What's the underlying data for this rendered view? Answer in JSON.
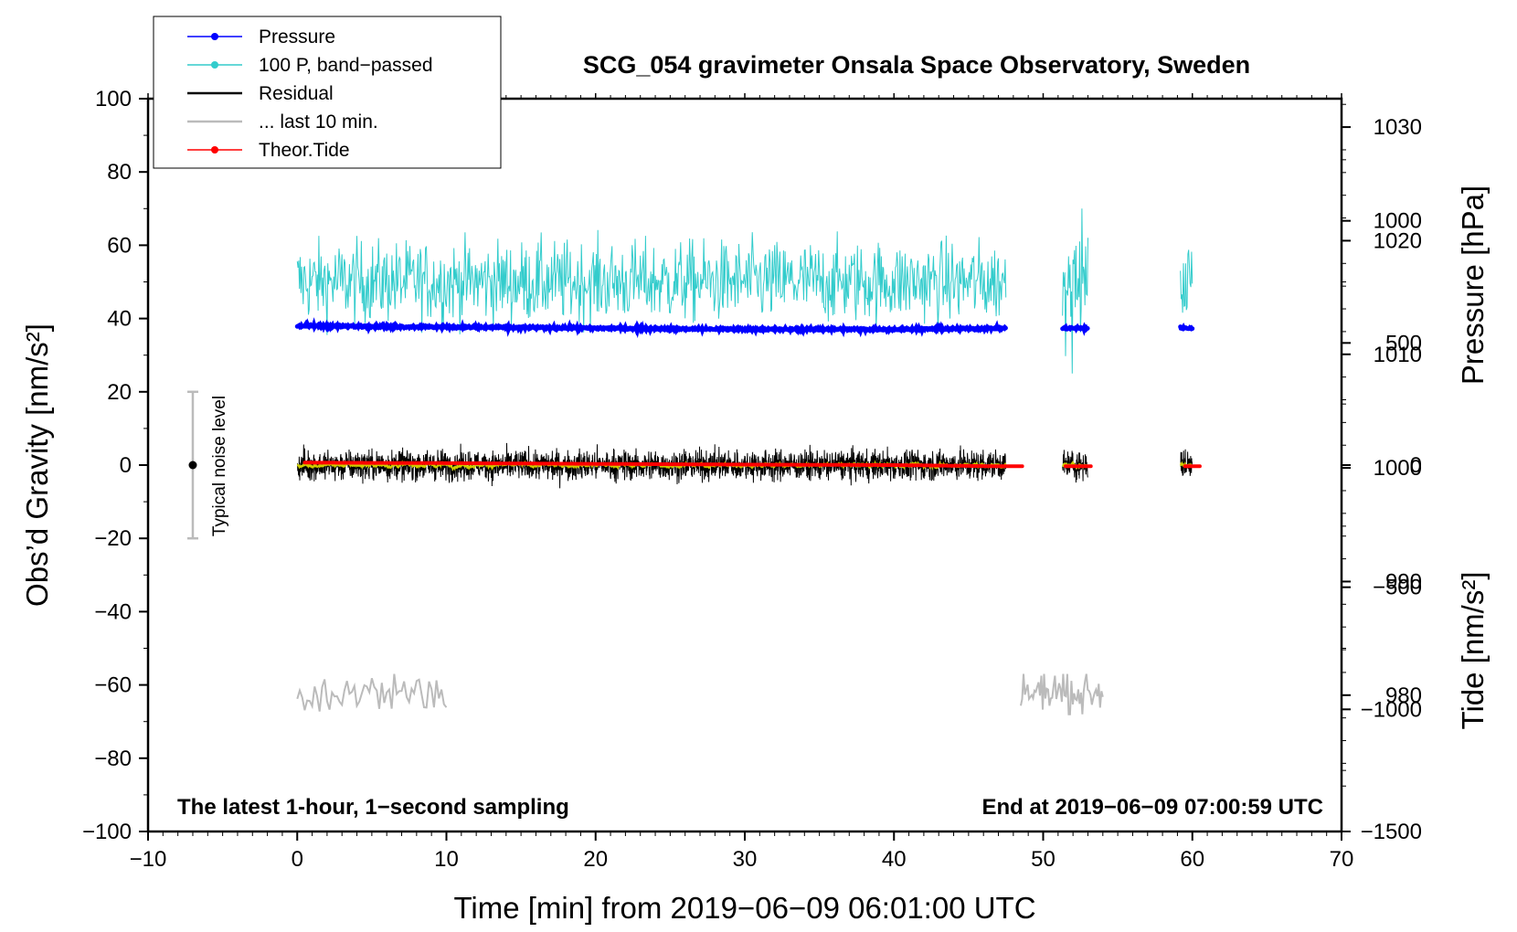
{
  "chart_data": {
    "type": "line",
    "title": "SCG_054 gravimeter Onsala Space Observatory, Sweden",
    "xlabel": "Time [min] from 2019−06−09 06:01:00 UTC",
    "ylabel": "Obs’d Gravity [nm/s²]",
    "y2label": "Pressure [hPa]",
    "y3label": "Tide [nm/s²]",
    "xlim": [
      -10,
      70
    ],
    "ylim": [
      -100,
      100
    ],
    "pressure_lim": [
      968,
      1032.5
    ],
    "tide_lim": [
      -1500,
      1500
    ],
    "xticks": [
      -10,
      0,
      10,
      20,
      30,
      40,
      50,
      60,
      70
    ],
    "xtick_labels": [
      "−10",
      "0",
      "10",
      "20",
      "30",
      "40",
      "50",
      "60",
      "70"
    ],
    "yticks": [
      100,
      80,
      60,
      40,
      20,
      0,
      -20,
      -40,
      -60,
      -80,
      -100
    ],
    "ytick_labels": [
      "100",
      "80",
      "60",
      "40",
      "20",
      "0",
      "−20",
      "−40",
      "−60",
      "−80",
      "−100"
    ],
    "pressure_ticks": [
      1030,
      1020,
      1010,
      1000,
      990,
      980
    ],
    "pressure_tick_labels": [
      "1030",
      "1020",
      "1010",
      "1000",
      "990",
      "980"
    ],
    "tide_ticks": [
      1000,
      500,
      0,
      -500,
      -1000,
      -1500
    ],
    "tide_tick_labels": [
      "1000",
      "500",
      "0",
      "−500",
      "−1000",
      "−1500"
    ],
    "note_left": "The latest 1-hour, 1−second sampling",
    "note_right": "End at 2019−06−09 07:00:59 UTC",
    "noise_label": "Typical noise level",
    "noise_bar": {
      "x": -7,
      "center": 0,
      "half_range": 20
    },
    "grid": false,
    "legend_position": "top-left",
    "colors": {
      "pressure": "#0000ff",
      "bandpassed": "#33cccc",
      "residual": "#000000",
      "residual_smooth": "#cccc00",
      "last10": "#bbbbbb",
      "tide": "#ff0000"
    },
    "legend": [
      {
        "label": "Pressure",
        "color": "#0000ff",
        "marker": true
      },
      {
        "label": "100 P, band−passed",
        "color": "#33cccc",
        "marker": true
      },
      {
        "label": "Residual",
        "color": "#000000",
        "marker": false
      },
      {
        "label": "... last 10 min.",
        "color": "#bbbbbb",
        "marker": false
      },
      {
        "label": "Theor.Tide",
        "color": "#ff0000",
        "marker": true
      }
    ],
    "segments": [
      [
        0,
        47.5
      ],
      [
        51.3,
        53
      ],
      [
        59.2,
        60
      ]
    ],
    "tide_segments": [
      [
        0.5,
        47.3
      ],
      [
        47.3,
        48.6
      ],
      [
        51.5,
        53.2
      ],
      [
        59.5,
        60.5
      ]
    ],
    "series": [
      {
        "name": "Pressure",
        "axis": "pressure",
        "x": [
          0,
          10,
          20,
          30,
          40,
          47.5,
          51.3,
          53,
          59.2,
          60
        ],
        "values": [
          1012.5,
          1012.4,
          1012.3,
          1012.2,
          1012.2,
          1012.3,
          1012.3,
          1012.3,
          1012.3,
          1012.3
        ]
      },
      {
        "name": "100 P, band−passed",
        "axis": "gravity",
        "x": [
          0,
          47.5
        ],
        "values": [
          50,
          50
        ],
        "range": [
          25,
          70
        ]
      },
      {
        "name": "Residual",
        "axis": "gravity",
        "x": [
          0,
          47.5
        ],
        "values": [
          0,
          0
        ],
        "range": [
          -7,
          6
        ]
      },
      {
        "name": "... last 10 min.",
        "axis": "gravity",
        "x": [
          0,
          10
        ],
        "values": [
          -62,
          -62
        ],
        "range": [
          -68,
          -57
        ]
      },
      {
        "name": "Theor.Tide",
        "axis": "tide",
        "x": [
          0.5,
          10,
          20,
          30,
          40,
          47.3,
          60.5
        ],
        "values": [
          10,
          8,
          5,
          2,
          0,
          -5,
          -5
        ]
      }
    ]
  }
}
